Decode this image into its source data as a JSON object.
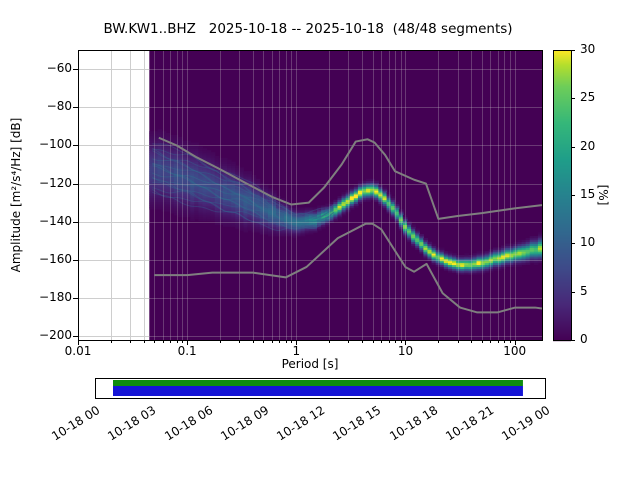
{
  "title": "BW.KW1..BHZ   2025-10-18 -- 2025-10-18  (48/48 segments)",
  "chart_data": {
    "type": "heatmap",
    "title": "BW.KW1..BHZ   2025-10-18 -- 2025-10-18  (48/48 segments)",
    "network_station_channel": "BW.KW1..BHZ",
    "date_range": "2025-10-18 -- 2025-10-18",
    "segments": "48/48",
    "xlabel": "Period [s]",
    "ylabel": "Amplitude [m²/s⁴/Hz] [dB]",
    "xscale": "log",
    "xlim": [
      0.01,
      178
    ],
    "ylim": [
      -200,
      -60
    ],
    "grid": true,
    "background_color": "#440154",
    "x_ticks": [
      {
        "v": 0.01,
        "label": "0.01"
      },
      {
        "v": 0.1,
        "label": "0.1"
      },
      {
        "v": 1,
        "label": "1"
      },
      {
        "v": 10,
        "label": "10"
      },
      {
        "v": 100,
        "label": "100"
      }
    ],
    "y_ticks": [
      {
        "v": -60,
        "label": "−60"
      },
      {
        "v": -80,
        "label": "−80"
      },
      {
        "v": -100,
        "label": "−100"
      },
      {
        "v": -120,
        "label": "−120"
      },
      {
        "v": -140,
        "label": "−140"
      },
      {
        "v": -160,
        "label": "−160"
      },
      {
        "v": -180,
        "label": "−180"
      },
      {
        "v": -200,
        "label": "−200"
      }
    ],
    "colorbar": {
      "label": "[%]",
      "colormap": "viridis",
      "max": 30,
      "ticks": [
        0,
        5,
        10,
        15,
        20,
        25,
        30
      ]
    },
    "histogram": {
      "period_min": 0.045,
      "period_max": 178,
      "mode_db": [
        [
          0.048,
          -112
        ],
        [
          0.07,
          -115
        ],
        [
          0.1,
          -117
        ],
        [
          0.15,
          -121
        ],
        [
          0.22,
          -125
        ],
        [
          0.3,
          -127
        ],
        [
          0.5,
          -133
        ],
        [
          0.7,
          -137
        ],
        [
          1,
          -140
        ],
        [
          1.5,
          -139
        ],
        [
          2,
          -136
        ],
        [
          3,
          -129
        ],
        [
          4,
          -124
        ],
        [
          5,
          -123
        ],
        [
          6,
          -126
        ],
        [
          8,
          -134
        ],
        [
          10,
          -143
        ],
        [
          13,
          -150
        ],
        [
          16,
          -155
        ],
        [
          20,
          -158.5
        ],
        [
          25,
          -161
        ],
        [
          30,
          -162.5
        ],
        [
          40,
          -162.5
        ],
        [
          50,
          -161.5
        ],
        [
          70,
          -159
        ],
        [
          100,
          -157
        ],
        [
          140,
          -155
        ],
        [
          178,
          -153.5
        ]
      ],
      "sigma_db": [
        [
          0.048,
          9
        ],
        [
          0.1,
          8.5
        ],
        [
          0.2,
          7.5
        ],
        [
          0.35,
          6.5
        ],
        [
          0.5,
          5.5
        ],
        [
          0.7,
          4.2
        ],
        [
          1,
          3
        ],
        [
          1.5,
          2.4
        ],
        [
          2,
          2
        ],
        [
          3,
          2
        ],
        [
          5,
          2
        ],
        [
          8,
          2
        ],
        [
          10,
          2
        ],
        [
          20,
          1.8
        ],
        [
          30,
          1.8
        ],
        [
          50,
          2
        ],
        [
          100,
          2.2
        ],
        [
          178,
          2.8
        ]
      ],
      "peak_percent": [
        [
          0.048,
          7
        ],
        [
          0.1,
          8
        ],
        [
          0.2,
          8
        ],
        [
          0.35,
          9
        ],
        [
          0.5,
          10
        ],
        [
          0.7,
          11
        ],
        [
          1,
          14
        ],
        [
          1.5,
          18
        ],
        [
          2,
          24
        ],
        [
          3,
          30
        ],
        [
          5,
          30
        ],
        [
          8,
          26
        ],
        [
          10,
          26
        ],
        [
          20,
          28
        ],
        [
          30,
          30
        ],
        [
          50,
          30
        ],
        [
          100,
          28
        ],
        [
          178,
          26
        ]
      ]
    },
    "noise_models": {
      "color": "#7f7f7f",
      "high": [
        [
          0.055,
          -96
        ],
        [
          0.08,
          -100
        ],
        [
          0.12,
          -106
        ],
        [
          0.2,
          -112.5
        ],
        [
          0.35,
          -120
        ],
        [
          0.6,
          -127
        ],
        [
          0.9,
          -131
        ],
        [
          1.3,
          -130
        ],
        [
          1.8,
          -122
        ],
        [
          2.6,
          -110
        ],
        [
          3.5,
          -98
        ],
        [
          4.5,
          -96.8
        ],
        [
          5.2,
          -98.5
        ],
        [
          6.5,
          -105
        ],
        [
          8,
          -113.5
        ],
        [
          12,
          -118
        ],
        [
          15.4,
          -120
        ],
        [
          20,
          -138.5
        ],
        [
          30,
          -137
        ],
        [
          50,
          -135.5
        ],
        [
          100,
          -133
        ],
        [
          178,
          -131.3
        ]
      ],
      "low": [
        [
          0.05,
          -168
        ],
        [
          0.1,
          -168
        ],
        [
          0.17,
          -166.7
        ],
        [
          0.4,
          -166.7
        ],
        [
          0.8,
          -169.2
        ],
        [
          1.24,
          -163.7
        ],
        [
          2.4,
          -148.6
        ],
        [
          4.3,
          -141.1
        ],
        [
          5,
          -141.1
        ],
        [
          6,
          -144
        ],
        [
          10,
          -163.8
        ],
        [
          12,
          -166.2
        ],
        [
          15.6,
          -162.1
        ],
        [
          21.9,
          -177.5
        ],
        [
          31.6,
          -185
        ],
        [
          45,
          -187.5
        ],
        [
          70,
          -187.5
        ],
        [
          101,
          -185
        ],
        [
          154,
          -185
        ],
        [
          178,
          -185.5
        ]
      ]
    },
    "timeline": {
      "labels": [
        "10-18 00",
        "10-18 03",
        "10-18 06",
        "10-18 09",
        "10-18 12",
        "10-18 15",
        "10-18 18",
        "10-18 21",
        "10-19 00"
      ],
      "coverage_start_frac": 0.04,
      "coverage_end_frac": 0.951,
      "used_color": "#0e8c0e",
      "data_color": "#1414d6"
    }
  }
}
